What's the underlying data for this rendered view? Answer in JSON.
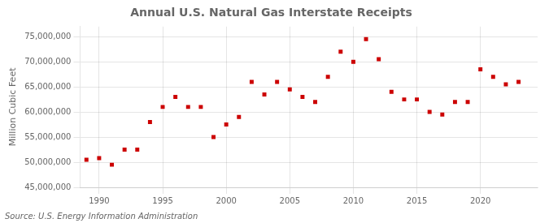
{
  "chart_data": {
    "type": "scatter",
    "title": "Annual U.S. Natural Gas Interstate Receipts",
    "ylabel": "Million Cubic Feet",
    "annotations": [
      "Source: U.S. Energy Information Administration"
    ],
    "x": [
      1989,
      1990,
      1991,
      1992,
      1993,
      1994,
      1995,
      1996,
      1997,
      1998,
      1999,
      2000,
      2001,
      2002,
      2003,
      2004,
      2005,
      2006,
      2007,
      2008,
      2009,
      2010,
      2011,
      2012,
      2013,
      2014,
      2015,
      2016,
      2017,
      2018,
      2019,
      2020,
      2021,
      2022,
      2023
    ],
    "values": [
      50500000,
      50800000,
      49500000,
      52500000,
      52500000,
      58000000,
      61000000,
      63000000,
      61000000,
      61000000,
      55000000,
      57500000,
      59000000,
      66000000,
      63500000,
      66000000,
      64500000,
      63000000,
      62000000,
      67000000,
      72000000,
      70000000,
      74500000,
      70500000,
      64000000,
      62500000,
      62500000,
      60000000,
      59500000,
      62000000,
      62000000,
      68500000,
      67000000,
      65500000,
      66000000
    ],
    "color": "#cc0000",
    "marker": "square",
    "grid": true,
    "xlim": [
      1988.5,
      2024.5
    ],
    "ylim": [
      45000000,
      77000000
    ],
    "xticks": [
      1990,
      1995,
      2000,
      2005,
      2010,
      2015,
      2020
    ],
    "yticks": [
      {
        "value": 45000000,
        "label": "45,000,000"
      },
      {
        "value": 50000000,
        "label": "50,000,000"
      },
      {
        "value": 55000000,
        "label": "55,000,000"
      },
      {
        "value": 60000000,
        "label": "60,000,000"
      },
      {
        "value": 65000000,
        "label": "65,000,000"
      },
      {
        "value": 70000000,
        "label": "70,000,000"
      },
      {
        "value": 75000000,
        "label": "75,000,000"
      }
    ]
  }
}
